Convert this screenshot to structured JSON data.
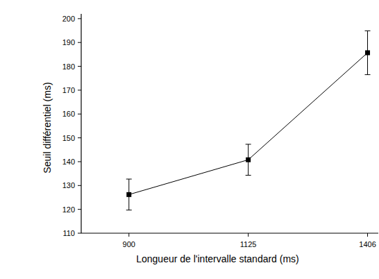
{
  "chart_data": {
    "type": "line",
    "x_label": "Longueur de l'intervalle standard (ms)",
    "y_label": "Seuil différentiel (ms)",
    "categories": [
      "900",
      "1125",
      "1406"
    ],
    "values": [
      126.2,
      140.8,
      185.7
    ],
    "errors": [
      6.5,
      6.5,
      9.2
    ],
    "color": "#000000",
    "marker": "square",
    "line_style": "solid",
    "ylim": [
      110,
      202
    ],
    "yticks": [
      110,
      120,
      130,
      140,
      150,
      160,
      170,
      180,
      190,
      200
    ],
    "grid": false
  }
}
